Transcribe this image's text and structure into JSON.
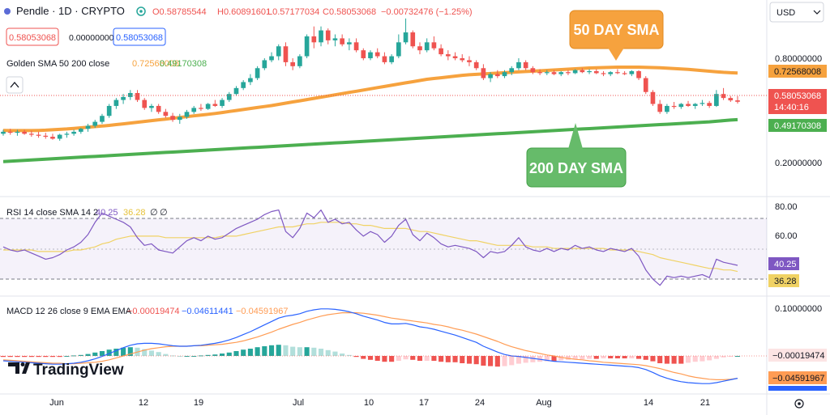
{
  "header": {
    "symbol": "Pendle · 1D · CRYPTO",
    "open": "O0.58785544",
    "high": "H0.60891601",
    "low": "L0.57177034",
    "close": "C0.58053068",
    "change": "−0.00732476 (−1.25%)",
    "sell_price": "0.58053068",
    "spread": "0.00000000",
    "buy_price": "0.58053068",
    "currency": "USD"
  },
  "indicators": {
    "golden_sma": {
      "label": "Golden SMA 50 200 close",
      "v50": "0.72568008",
      "v200": "0.49170308"
    },
    "rsi": {
      "label": "RSI 14 close SMA 14 2",
      "rsi": "40.25",
      "sma": "36.28",
      "extra1": "∅",
      "extra2": "∅"
    },
    "macd": {
      "label": "MACD 12 26 close 9 EMA EMA",
      "hist": "−0.00019474",
      "macd": "−0.04611441",
      "signal": "−0.04591967"
    }
  },
  "callouts": {
    "sma50": "50 DAY SMA",
    "sma200": "200 DAY SMA"
  },
  "price_axis": {
    "ticks": [
      "0.80000000",
      "0.20000000"
    ],
    "tags": {
      "sma50": "0.72568008",
      "price": "0.58053068",
      "countdown": "14:40:16",
      "sma200": "0.49170308"
    }
  },
  "rsi_axis": {
    "ticks": [
      "80.00",
      "60.00"
    ],
    "tags": {
      "rsi": "40.25",
      "sma": "36.28"
    }
  },
  "macd_axis": {
    "ticks": [
      "0.10000000"
    ],
    "tags": {
      "hist": "−0.00019474",
      "signal": "−0.04591967"
    }
  },
  "time_axis": [
    "Jun",
    "12",
    "19",
    "Jul",
    "10",
    "17",
    "24",
    "Aug",
    "14",
    "21"
  ],
  "logo": "TradingView",
  "colors": {
    "up": "#26a69a",
    "down": "#ef5350",
    "sma50": "#f6a23e",
    "sma200": "#4caf50",
    "rsi": "#7e57c2",
    "rsi_sma": "#f0d264",
    "macd": "#2962ff",
    "signal": "#ff9c54"
  },
  "chart_data": {
    "type": "candlestick",
    "title": "Pendle · 1D · CRYPTO",
    "x_labels": [
      "Jun",
      "12",
      "19",
      "Jul",
      "10",
      "17",
      "24",
      "Aug",
      "14",
      "21"
    ],
    "ohlc": [
      [
        0.42,
        0.44,
        0.41,
        0.43
      ],
      [
        0.43,
        0.445,
        0.415,
        0.425
      ],
      [
        0.425,
        0.44,
        0.41,
        0.43
      ],
      [
        0.43,
        0.44,
        0.415,
        0.42
      ],
      [
        0.42,
        0.435,
        0.405,
        0.415
      ],
      [
        0.415,
        0.43,
        0.4,
        0.41
      ],
      [
        0.41,
        0.425,
        0.395,
        0.405
      ],
      [
        0.405,
        0.42,
        0.39,
        0.395
      ],
      [
        0.395,
        0.42,
        0.385,
        0.415
      ],
      [
        0.415,
        0.43,
        0.4,
        0.42
      ],
      [
        0.42,
        0.44,
        0.41,
        0.43
      ],
      [
        0.43,
        0.45,
        0.42,
        0.445
      ],
      [
        0.445,
        0.47,
        0.43,
        0.46
      ],
      [
        0.46,
        0.49,
        0.45,
        0.48
      ],
      [
        0.48,
        0.52,
        0.47,
        0.51
      ],
      [
        0.51,
        0.57,
        0.5,
        0.56
      ],
      [
        0.56,
        0.6,
        0.545,
        0.59
      ],
      [
        0.59,
        0.62,
        0.57,
        0.605
      ],
      [
        0.605,
        0.64,
        0.59,
        0.625
      ],
      [
        0.625,
        0.64,
        0.58,
        0.59
      ],
      [
        0.59,
        0.6,
        0.54,
        0.55
      ],
      [
        0.55,
        0.57,
        0.53,
        0.56
      ],
      [
        0.56,
        0.57,
        0.52,
        0.53
      ],
      [
        0.53,
        0.545,
        0.5,
        0.51
      ],
      [
        0.51,
        0.525,
        0.48,
        0.49
      ],
      [
        0.49,
        0.52,
        0.47,
        0.505
      ],
      [
        0.505,
        0.54,
        0.495,
        0.53
      ],
      [
        0.53,
        0.56,
        0.52,
        0.55
      ],
      [
        0.55,
        0.57,
        0.535,
        0.545
      ],
      [
        0.545,
        0.575,
        0.54,
        0.57
      ],
      [
        0.57,
        0.59,
        0.555,
        0.56
      ],
      [
        0.56,
        0.6,
        0.55,
        0.59
      ],
      [
        0.59,
        0.63,
        0.58,
        0.62
      ],
      [
        0.62,
        0.66,
        0.61,
        0.65
      ],
      [
        0.65,
        0.69,
        0.64,
        0.68
      ],
      [
        0.68,
        0.72,
        0.665,
        0.7
      ],
      [
        0.7,
        0.76,
        0.69,
        0.75
      ],
      [
        0.75,
        0.8,
        0.74,
        0.79
      ],
      [
        0.79,
        0.83,
        0.78,
        0.81
      ],
      [
        0.81,
        0.87,
        0.79,
        0.86
      ],
      [
        0.86,
        0.88,
        0.76,
        0.78
      ],
      [
        0.78,
        0.8,
        0.74,
        0.76
      ],
      [
        0.76,
        0.82,
        0.75,
        0.81
      ],
      [
        0.81,
        0.92,
        0.8,
        0.91
      ],
      [
        0.91,
        0.96,
        0.85,
        0.88
      ],
      [
        0.88,
        0.96,
        0.86,
        0.94
      ],
      [
        0.94,
        0.95,
        0.87,
        0.89
      ],
      [
        0.89,
        0.92,
        0.86,
        0.9
      ],
      [
        0.9,
        0.92,
        0.86,
        0.87
      ],
      [
        0.87,
        0.9,
        0.84,
        0.88
      ],
      [
        0.88,
        0.9,
        0.83,
        0.84
      ],
      [
        0.84,
        0.85,
        0.79,
        0.8
      ],
      [
        0.8,
        0.84,
        0.79,
        0.83
      ],
      [
        0.83,
        0.85,
        0.8,
        0.81
      ],
      [
        0.81,
        0.83,
        0.77,
        0.78
      ],
      [
        0.78,
        0.82,
        0.77,
        0.81
      ],
      [
        0.81,
        0.92,
        0.8,
        0.88
      ],
      [
        0.88,
        1.0,
        0.87,
        0.93
      ],
      [
        0.93,
        0.94,
        0.85,
        0.86
      ],
      [
        0.86,
        0.88,
        0.82,
        0.84
      ],
      [
        0.84,
        0.9,
        0.83,
        0.88
      ],
      [
        0.88,
        0.91,
        0.84,
        0.85
      ],
      [
        0.85,
        0.87,
        0.81,
        0.82
      ],
      [
        0.82,
        0.84,
        0.79,
        0.81
      ],
      [
        0.81,
        0.83,
        0.79,
        0.8
      ],
      [
        0.8,
        0.82,
        0.78,
        0.79
      ],
      [
        0.79,
        0.81,
        0.76,
        0.78
      ],
      [
        0.78,
        0.79,
        0.74,
        0.75
      ],
      [
        0.75,
        0.77,
        0.69,
        0.7
      ],
      [
        0.7,
        0.73,
        0.68,
        0.72
      ],
      [
        0.72,
        0.74,
        0.7,
        0.71
      ],
      [
        0.71,
        0.74,
        0.7,
        0.73
      ],
      [
        0.73,
        0.76,
        0.715,
        0.75
      ],
      [
        0.75,
        0.8,
        0.74,
        0.78
      ],
      [
        0.78,
        0.79,
        0.74,
        0.75
      ],
      [
        0.75,
        0.76,
        0.72,
        0.73
      ],
      [
        0.73,
        0.745,
        0.715,
        0.725
      ],
      [
        0.725,
        0.74,
        0.715,
        0.73
      ],
      [
        0.73,
        0.74,
        0.715,
        0.72
      ],
      [
        0.72,
        0.735,
        0.71,
        0.73
      ],
      [
        0.73,
        0.74,
        0.715,
        0.725
      ],
      [
        0.725,
        0.745,
        0.72,
        0.74
      ],
      [
        0.74,
        0.75,
        0.725,
        0.73
      ],
      [
        0.73,
        0.745,
        0.72,
        0.735
      ],
      [
        0.735,
        0.745,
        0.72,
        0.725
      ],
      [
        0.725,
        0.735,
        0.71,
        0.72
      ],
      [
        0.72,
        0.735,
        0.71,
        0.73
      ],
      [
        0.73,
        0.745,
        0.72,
        0.725
      ],
      [
        0.725,
        0.735,
        0.715,
        0.72
      ],
      [
        0.72,
        0.74,
        0.71,
        0.735
      ],
      [
        0.735,
        0.74,
        0.69,
        0.7
      ],
      [
        0.7,
        0.71,
        0.62,
        0.63
      ],
      [
        0.63,
        0.64,
        0.56,
        0.57
      ],
      [
        0.57,
        0.59,
        0.52,
        0.53
      ],
      [
        0.53,
        0.57,
        0.52,
        0.56
      ],
      [
        0.56,
        0.58,
        0.545,
        0.555
      ],
      [
        0.555,
        0.575,
        0.545,
        0.57
      ],
      [
        0.57,
        0.585,
        0.555,
        0.56
      ],
      [
        0.56,
        0.575,
        0.545,
        0.57
      ],
      [
        0.57,
        0.59,
        0.56,
        0.575
      ],
      [
        0.575,
        0.585,
        0.55,
        0.56
      ],
      [
        0.56,
        0.64,
        0.555,
        0.62
      ],
      [
        0.62,
        0.65,
        0.59,
        0.6
      ],
      [
        0.6,
        0.61,
        0.58,
        0.588
      ],
      [
        0.588,
        0.609,
        0.572,
        0.581
      ]
    ],
    "sma50": [
      0.437,
      0.436,
      0.436,
      0.436,
      0.436,
      0.437,
      0.438,
      0.44,
      0.442,
      0.444,
      0.447,
      0.45,
      0.453,
      0.456,
      0.459,
      0.462,
      0.466,
      0.47,
      0.474,
      0.478,
      0.482,
      0.486,
      0.49,
      0.494,
      0.498,
      0.502,
      0.506,
      0.51,
      0.514,
      0.518,
      0.522,
      0.527,
      0.532,
      0.537,
      0.542,
      0.547,
      0.552,
      0.557,
      0.562,
      0.568,
      0.574,
      0.58,
      0.586,
      0.592,
      0.598,
      0.604,
      0.61,
      0.616,
      0.622,
      0.628,
      0.634,
      0.64,
      0.646,
      0.652,
      0.658,
      0.664,
      0.67,
      0.676,
      0.682,
      0.688,
      0.694,
      0.698,
      0.702,
      0.706,
      0.71,
      0.714,
      0.717,
      0.719,
      0.721,
      0.723,
      0.725,
      0.727,
      0.729,
      0.731,
      0.733,
      0.735,
      0.737,
      0.739,
      0.741,
      0.743,
      0.745,
      0.747,
      0.749,
      0.751,
      0.752,
      0.753,
      0.754,
      0.755,
      0.755,
      0.755,
      0.755,
      0.754,
      0.753,
      0.752,
      0.75,
      0.748,
      0.746,
      0.744,
      0.741,
      0.738,
      0.735,
      0.732,
      0.729,
      0.727,
      0.726
    ],
    "sma200": [
      0.28,
      0.282,
      0.284,
      0.286,
      0.288,
      0.29,
      0.292,
      0.294,
      0.296,
      0.298,
      0.3,
      0.302,
      0.304,
      0.306,
      0.308,
      0.31,
      0.312,
      0.314,
      0.316,
      0.318,
      0.32,
      0.322,
      0.324,
      0.326,
      0.328,
      0.33,
      0.332,
      0.334,
      0.336,
      0.338,
      0.34,
      0.342,
      0.344,
      0.346,
      0.348,
      0.35,
      0.352,
      0.354,
      0.356,
      0.358,
      0.36,
      0.362,
      0.364,
      0.366,
      0.368,
      0.37,
      0.372,
      0.374,
      0.376,
      0.378,
      0.38,
      0.382,
      0.384,
      0.386,
      0.388,
      0.39,
      0.392,
      0.394,
      0.396,
      0.398,
      0.4,
      0.402,
      0.404,
      0.406,
      0.408,
      0.41,
      0.412,
      0.414,
      0.416,
      0.418,
      0.42,
      0.422,
      0.424,
      0.426,
      0.428,
      0.43,
      0.432,
      0.434,
      0.436,
      0.438,
      0.44,
      0.442,
      0.444,
      0.446,
      0.448,
      0.45,
      0.452,
      0.454,
      0.456,
      0.458,
      0.46,
      0.462,
      0.464,
      0.466,
      0.468,
      0.47,
      0.472,
      0.474,
      0.476,
      0.478,
      0.48,
      0.483,
      0.486,
      0.489,
      0.491
    ],
    "rsi": [
      52,
      50,
      49,
      50,
      48,
      46,
      44,
      45,
      47,
      50,
      52,
      55,
      60,
      68,
      74,
      72,
      70,
      68,
      65,
      58,
      53,
      54,
      50,
      49,
      48,
      52,
      56,
      58,
      56,
      59,
      57,
      58,
      61,
      64,
      66,
      68,
      70,
      73,
      75,
      76,
      62,
      58,
      64,
      74,
      71,
      76,
      68,
      70,
      67,
      68,
      63,
      59,
      62,
      60,
      55,
      59,
      66,
      70,
      60,
      56,
      61,
      58,
      54,
      52,
      53,
      52,
      51,
      49,
      45,
      49,
      48,
      49,
      53,
      58,
      52,
      50,
      49,
      51,
      49,
      51,
      50,
      53,
      51,
      52,
      50,
      49,
      51,
      50,
      49,
      51,
      46,
      37,
      31,
      27,
      33,
      32,
      33,
      32,
      33,
      34,
      32,
      44,
      42,
      41,
      40
    ],
    "rsi_sma": [
      50,
      50,
      50,
      50,
      50,
      49,
      49,
      49,
      49,
      49,
      50,
      50,
      51,
      52,
      54,
      55,
      57,
      58,
      59,
      59,
      59,
      59,
      59,
      58,
      58,
      58,
      58,
      58,
      58,
      58,
      58,
      59,
      59,
      59,
      60,
      61,
      62,
      63,
      64,
      65,
      65,
      65,
      66,
      67,
      67,
      68,
      68,
      68,
      68,
      67,
      67,
      66,
      66,
      65,
      64,
      64,
      64,
      64,
      63,
      62,
      62,
      61,
      60,
      59,
      58,
      57,
      56,
      56,
      55,
      54,
      53,
      53,
      53,
      53,
      53,
      52,
      52,
      52,
      51,
      51,
      51,
      51,
      51,
      51,
      51,
      51,
      50,
      50,
      50,
      50,
      49,
      48,
      47,
      45,
      44,
      43,
      42,
      41,
      40,
      39,
      38,
      38,
      37,
      37,
      36
    ],
    "macd": [
      -0.01,
      -0.011,
      -0.012,
      -0.013,
      -0.014,
      -0.015,
      -0.016,
      -0.017,
      -0.017,
      -0.016,
      -0.015,
      -0.013,
      -0.01,
      -0.006,
      -0.001,
      0.005,
      0.011,
      0.017,
      0.022,
      0.025,
      0.026,
      0.026,
      0.025,
      0.023,
      0.021,
      0.02,
      0.02,
      0.021,
      0.022,
      0.024,
      0.026,
      0.029,
      0.033,
      0.038,
      0.044,
      0.05,
      0.057,
      0.064,
      0.071,
      0.078,
      0.082,
      0.084,
      0.087,
      0.092,
      0.095,
      0.097,
      0.097,
      0.096,
      0.094,
      0.091,
      0.087,
      0.082,
      0.078,
      0.074,
      0.069,
      0.066,
      0.066,
      0.067,
      0.064,
      0.06,
      0.058,
      0.055,
      0.051,
      0.047,
      0.043,
      0.038,
      0.033,
      0.028,
      0.02,
      0.014,
      0.008,
      0.003,
      0.0,
      -0.001,
      -0.003,
      -0.005,
      -0.007,
      -0.009,
      -0.011,
      -0.012,
      -0.013,
      -0.014,
      -0.015,
      -0.016,
      -0.017,
      -0.018,
      -0.019,
      -0.02,
      -0.021,
      -0.022,
      -0.024,
      -0.028,
      -0.034,
      -0.041,
      -0.046,
      -0.05,
      -0.053,
      -0.055,
      -0.056,
      -0.057,
      -0.057,
      -0.055,
      -0.052,
      -0.049,
      -0.046
    ],
    "signal": [
      -0.008,
      -0.009,
      -0.01,
      -0.011,
      -0.012,
      -0.013,
      -0.014,
      -0.015,
      -0.015,
      -0.016,
      -0.016,
      -0.015,
      -0.014,
      -0.013,
      -0.011,
      -0.008,
      -0.004,
      0.0,
      0.004,
      0.008,
      0.012,
      0.015,
      0.017,
      0.019,
      0.02,
      0.02,
      0.02,
      0.021,
      0.021,
      0.022,
      0.023,
      0.024,
      0.026,
      0.028,
      0.031,
      0.035,
      0.039,
      0.044,
      0.049,
      0.055,
      0.06,
      0.065,
      0.069,
      0.074,
      0.078,
      0.082,
      0.085,
      0.087,
      0.089,
      0.089,
      0.089,
      0.088,
      0.086,
      0.084,
      0.081,
      0.078,
      0.076,
      0.074,
      0.072,
      0.07,
      0.068,
      0.065,
      0.063,
      0.06,
      0.056,
      0.053,
      0.049,
      0.045,
      0.04,
      0.035,
      0.03,
      0.024,
      0.019,
      0.015,
      0.011,
      0.008,
      0.005,
      0.002,
      0.0,
      -0.003,
      -0.005,
      -0.007,
      -0.008,
      -0.01,
      -0.011,
      -0.013,
      -0.014,
      -0.015,
      -0.016,
      -0.017,
      -0.018,
      -0.02,
      -0.023,
      -0.026,
      -0.03,
      -0.034,
      -0.037,
      -0.041,
      -0.044,
      -0.046,
      -0.048,
      -0.049,
      -0.049,
      -0.048,
      -0.046
    ]
  }
}
